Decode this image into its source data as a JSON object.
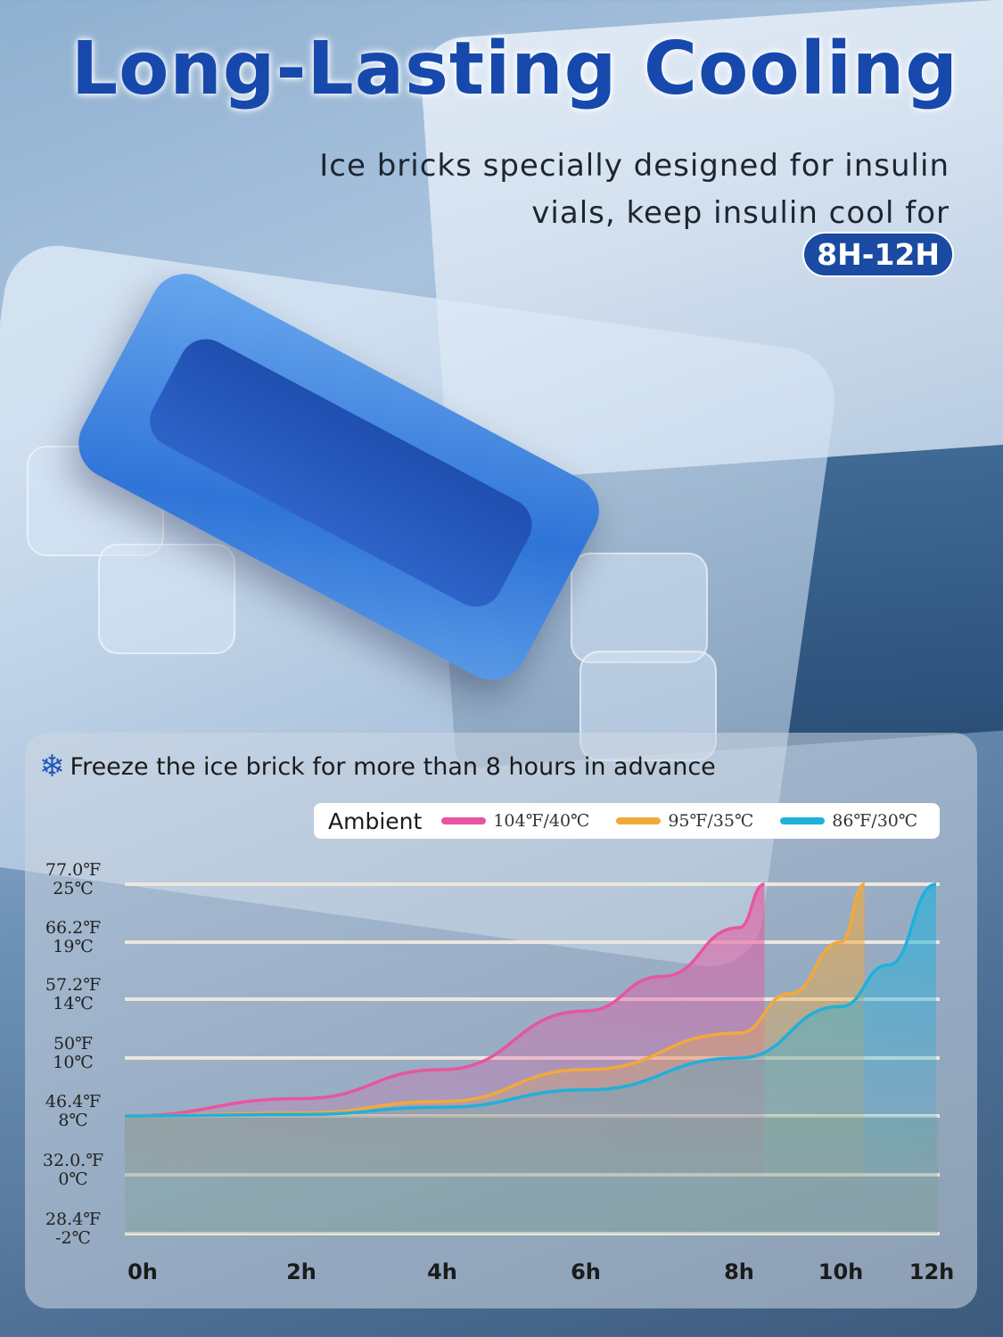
{
  "header": {
    "title": "Long-Lasting Cooling",
    "subtitle_line1": "Ice bricks specially designed for insulin",
    "subtitle_line2": "vials, keep insulin cool for",
    "badge": "8H-12H"
  },
  "note": {
    "icon": "snowflake-icon",
    "text": "Freeze the ice brick for more than 8 hours in advance"
  },
  "colors": {
    "title": "#1749ad",
    "badge": "#1a4aa2"
  },
  "chart_data": {
    "type": "area",
    "legend_title": "Ambient",
    "legend_placement": "top-right",
    "grid": true,
    "xlabel": "",
    "ylabel": "",
    "x_ticks": [
      "0h",
      "2h",
      "4h",
      "6h",
      "8h",
      "10h",
      "12h"
    ],
    "x_tick_values": [
      0,
      2,
      4,
      6,
      8,
      10,
      12
    ],
    "y_ticks": [
      {
        "f": "77.0℉",
        "c": "25℃",
        "value": 25
      },
      {
        "f": "66.2℉",
        "c": "19℃",
        "value": 19
      },
      {
        "f": "57.2℉",
        "c": "14℃",
        "value": 14
      },
      {
        "f": "50℉",
        "c": "10℃",
        "value": 10
      },
      {
        "f": "46.4℉",
        "c": "8℃",
        "value": 8
      },
      {
        "f": "32.0.℉",
        "c": "0℃",
        "value": 0
      },
      {
        "f": "28.4℉",
        "c": "-2℃",
        "value": -2
      }
    ],
    "series": [
      {
        "name": "104℉/40℃",
        "color": "#e8559f",
        "x": [
          0,
          2,
          4,
          6,
          7,
          8,
          8.5
        ],
        "y": [
          8,
          8.6,
          9.6,
          13.2,
          16,
          20.5,
          25
        ]
      },
      {
        "name": "95℉/35℃",
        "color": "#f2a93b",
        "x": [
          0,
          2,
          4,
          6,
          8,
          9,
          10,
          10.5
        ],
        "y": [
          8,
          8.1,
          8.5,
          9.6,
          11.7,
          14.5,
          19,
          25
        ]
      },
      {
        "name": "86℉/30℃",
        "color": "#1fb0dc",
        "x": [
          0,
          2,
          4,
          6,
          8,
          10,
          11,
          12
        ],
        "y": [
          8,
          8.05,
          8.3,
          8.9,
          10,
          13.5,
          17,
          25
        ]
      }
    ]
  }
}
